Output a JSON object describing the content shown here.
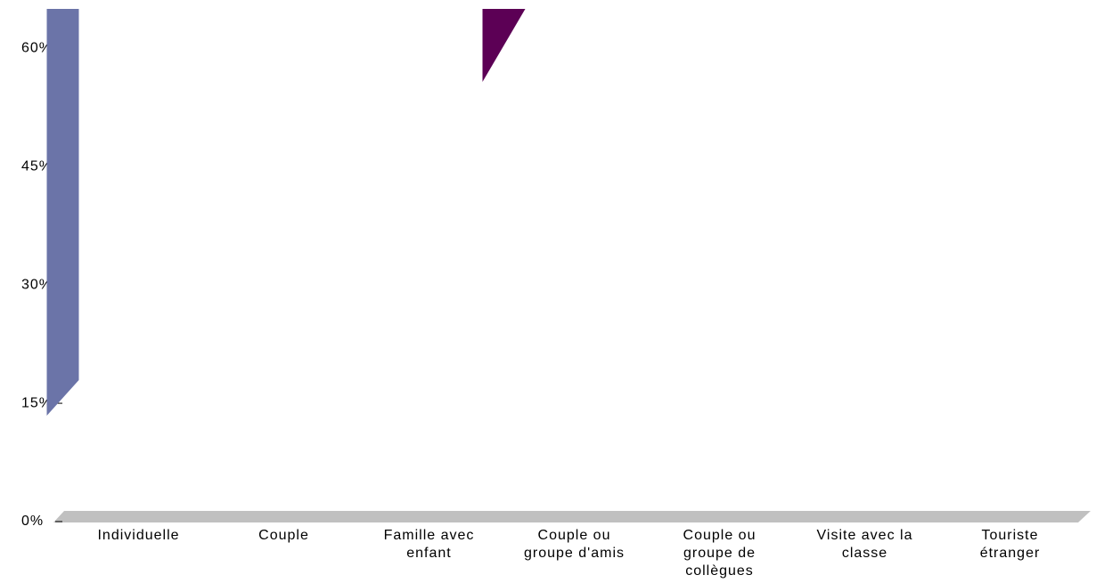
{
  "chart_data": {
    "type": "bar",
    "categories": [
      "Individuelle",
      "Couple",
      "Famille avec enfant",
      "Couple ou groupe d'amis",
      "Couple ou groupe de collègues",
      "Visite avec la classe",
      "Touriste étranger"
    ],
    "series": [
      {
        "name": null,
        "color": "#6b74a8",
        "values": [
          65,
          null,
          null,
          null,
          null,
          null,
          null
        ]
      },
      {
        "name": null,
        "color": "#5c0055",
        "values": [
          null,
          null,
          65,
          null,
          null,
          null,
          null
        ]
      }
    ],
    "ylim": [
      0,
      65
    ],
    "yticks": [
      {
        "value": 0,
        "label": "0%"
      },
      {
        "value": 15,
        "label": "15%"
      },
      {
        "value": 30,
        "label": "30%"
      },
      {
        "value": 45,
        "label": "45%"
      },
      {
        "value": 60,
        "label": "60%"
      }
    ]
  }
}
